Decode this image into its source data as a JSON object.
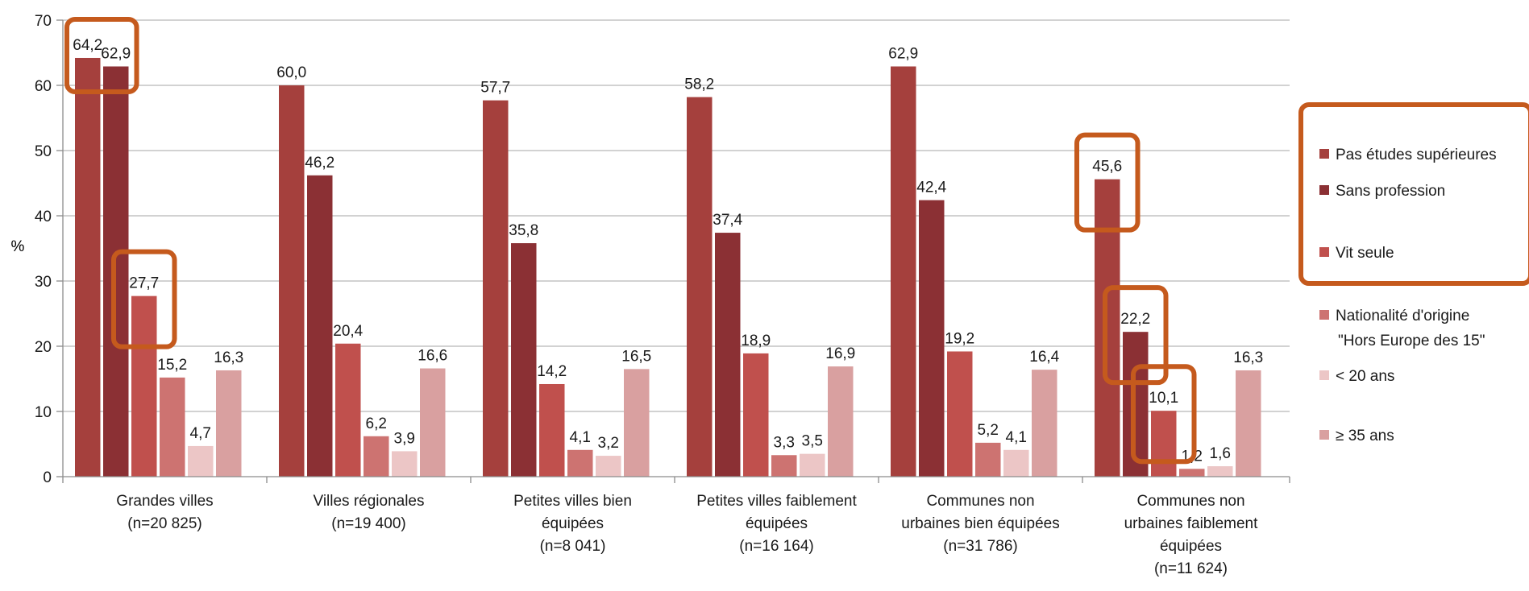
{
  "chart_data": {
    "type": "bar",
    "ylabel": "%",
    "ylim": [
      0,
      70
    ],
    "yticks": [
      0,
      10,
      20,
      30,
      40,
      50,
      60,
      70
    ],
    "grid": true,
    "legend_position": "right",
    "categories": [
      [
        "Grandes villes",
        "(n=20 825)"
      ],
      [
        "Villes régionales",
        "(n=19 400)"
      ],
      [
        "Petites villes bien",
        "équipées",
        "(n=8 041)"
      ],
      [
        "Petites villes faiblement",
        "équipées",
        "(n=16 164)"
      ],
      [
        "Communes non",
        "urbaines bien équipées",
        "(n=31 786)"
      ],
      [
        "Communes non",
        "urbaines faiblement",
        "équipées",
        "(n=11 624)"
      ]
    ],
    "series": [
      {
        "name": "Pas études supérieures",
        "color": "#a5403d",
        "values": [
          64.2,
          60.0,
          57.7,
          58.2,
          62.9,
          45.6
        ],
        "labels": [
          "64,2",
          "60,0",
          "57,7",
          "58,2",
          "62,9",
          "45,6"
        ]
      },
      {
        "name": "Sans profession",
        "color": "#8b3034",
        "values": [
          62.9,
          46.2,
          35.8,
          37.4,
          42.4,
          22.2
        ],
        "labels": [
          "62,9",
          "46,2",
          "35,8",
          "37,4",
          "42,4",
          "22,2"
        ]
      },
      {
        "name": "Vit seule",
        "color": "#c0504d",
        "values": [
          27.7,
          20.4,
          14.2,
          18.9,
          19.2,
          10.1
        ],
        "labels": [
          "27,7",
          "20,4",
          "14,2",
          "18,9",
          "19,2",
          "10,1"
        ]
      },
      {
        "name": "Nationalité d'origine \"Hors Europe des 15\"",
        "legend_lines": [
          "Nationalité d'origine",
          "\"Hors Europe des 15\""
        ],
        "color": "#cd7371",
        "values": [
          15.2,
          6.2,
          4.1,
          3.3,
          5.2,
          1.2
        ],
        "labels": [
          "15,2",
          "6,2",
          "4,1",
          "3,3",
          "5,2",
          "1,2"
        ]
      },
      {
        "name": "< 20 ans",
        "color": "#ecc6c6",
        "values": [
          4.7,
          3.9,
          3.2,
          3.5,
          4.1,
          1.6
        ],
        "labels": [
          "4,7",
          "3,9",
          "3,2",
          "3,5",
          "4,1",
          "1,6"
        ]
      },
      {
        "name": "≥ 35 ans",
        "color": "#d9a0a0",
        "values": [
          16.3,
          16.6,
          16.5,
          16.9,
          16.4,
          16.3
        ],
        "labels": [
          "16,3",
          "16,6",
          "16,5",
          "16,9",
          "16,4",
          "16,3"
        ]
      }
    ],
    "highlight_color": "#c55a1d"
  }
}
